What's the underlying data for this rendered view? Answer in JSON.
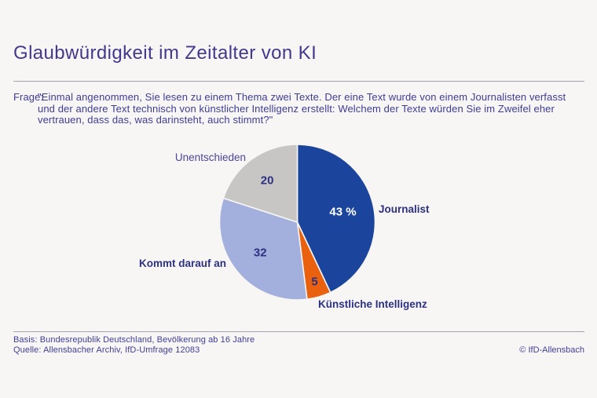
{
  "header": {
    "title": "Glaubwürdigkeit im Zeitalter von KI"
  },
  "question": {
    "label": "Frage:",
    "text": "\"Einmal angenommen, Sie lesen zu einem Thema zwei Texte. Der eine Text wurde von einem Journalisten verfasst und der andere Text technisch von künstlicher Intelligenz erstellt: Welchem der Texte würden Sie im Zweifel eher vertrauen, dass das, was darinsteht, auch stimmt?\""
  },
  "chart_data": {
    "type": "pie",
    "title": "Glaubwürdigkeit im Zeitalter von KI",
    "unit": "percent",
    "start_angle_deg": 0,
    "direction": "clockwise",
    "legend_position": "labels-around-pie",
    "slices": [
      {
        "label": "Journalist",
        "value": 43,
        "value_label": "43 %",
        "color": "#1b449c",
        "value_color": "#ffffff"
      },
      {
        "label": "Künstliche Intelligenz",
        "value": 5,
        "value_label": "5",
        "color": "#e9610e",
        "value_color": "#2d3181"
      },
      {
        "label": "Kommt darauf an",
        "value": 32,
        "value_label": "32",
        "color": "#a3afdc",
        "value_color": "#2d3181"
      },
      {
        "label": "Unentschieden",
        "value": 20,
        "value_label": "20",
        "color": "#c7c6c4",
        "value_color": "#2d3181"
      }
    ]
  },
  "footer": {
    "basis": "Basis: Bundesrepublik Deutschland, Bevölkerung ab 16 Jahre",
    "source": "Quelle: Allensbacher Archiv, IfD-Umfrage 12083",
    "copyright": "© IfD-Allensbach"
  }
}
